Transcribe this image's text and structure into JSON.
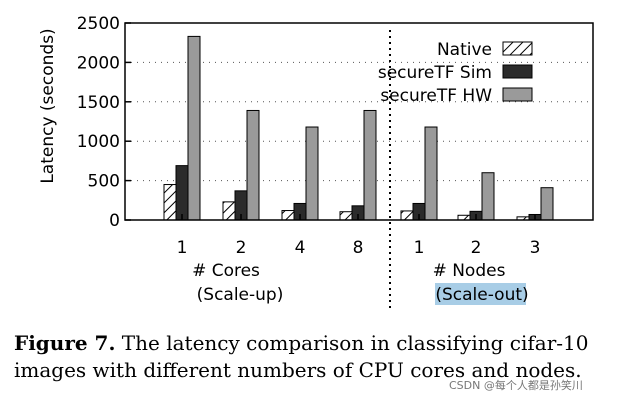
{
  "chart_data": {
    "type": "bar",
    "ylabel": "Latency (seconds)",
    "ylim": [
      0,
      2500
    ],
    "yticks": [
      0,
      500,
      1000,
      1500,
      2000,
      2500
    ],
    "grid": "dotted horizontal",
    "legend_position": "top-right",
    "groups": [
      {
        "name": "scale-up",
        "label_line1": "# Cores",
        "label_line2_prefix": "(",
        "label_line2_main": "Scale-up",
        "label_line2_suffix": ")",
        "categories": [
          "1",
          "2",
          "4",
          "8"
        ]
      },
      {
        "name": "scale-out",
        "label_line1": "# Nodes",
        "label_line2_prefix": "(",
        "label_line2_main": "Scale-out",
        "label_line2_suffix": ")",
        "categories": [
          "1",
          "2",
          "3"
        ]
      }
    ],
    "series": [
      {
        "name": "Native",
        "color": "#ffffff",
        "pattern": "hatch",
        "values": [
          450,
          230,
          120,
          105,
          115,
          60,
          40
        ]
      },
      {
        "name": "secureTF Sim",
        "color": "#2b2b2b",
        "pattern": "solid",
        "values": [
          690,
          370,
          210,
          180,
          210,
          110,
          70
        ]
      },
      {
        "name": "secureTF HW",
        "color": "#9a9a9a",
        "pattern": "solid",
        "values": [
          2330,
          1390,
          1180,
          1390,
          1180,
          600,
          410
        ]
      }
    ]
  },
  "caption": {
    "label": "Figure 7.",
    "text": "The latency comparison in classifying cifar-10 images with different numbers of CPU cores and nodes."
  },
  "watermark": "CSDN @每个人都是孙笑川"
}
